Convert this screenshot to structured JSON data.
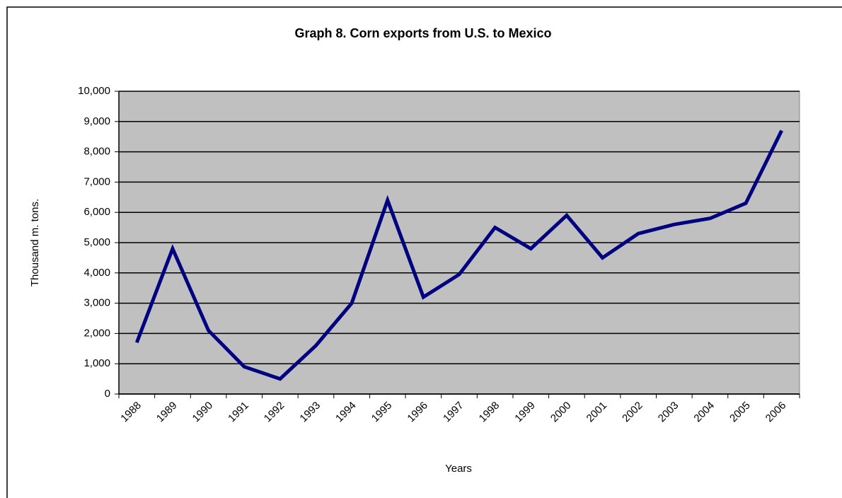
{
  "chart_data": {
    "type": "line",
    "title": "Graph 8. Corn exports from U.S. to Mexico",
    "x_label": "Years",
    "y_label": "Thousand m. tons.",
    "categories": [
      "1988",
      "1989",
      "1990",
      "1991",
      "1992",
      "1993",
      "1994",
      "1995",
      "1996",
      "1997",
      "1998",
      "1999",
      "2000",
      "2001",
      "2002",
      "2003",
      "2004",
      "2005",
      "2006"
    ],
    "series": [
      {
        "name": "Corn exports",
        "color": "#000080",
        "values": [
          1700,
          4800,
          2100,
          900,
          500,
          1600,
          3000,
          6400,
          3200,
          3950,
          5500,
          4800,
          5900,
          4500,
          5300,
          5600,
          5800,
          6300,
          8700
        ]
      }
    ],
    "ylim": [
      0,
      10000
    ],
    "yticks": [
      0,
      {
        "value": 1000,
        "label": "1,000"
      },
      {
        "value": 2000,
        "label": "2,000"
      },
      {
        "value": 3000,
        "label": "3,000"
      },
      {
        "value": 4000,
        "label": "4,000"
      },
      {
        "value": 5000,
        "label": "5,000"
      },
      {
        "value": 6000,
        "label": "6,000"
      },
      {
        "value": 7000,
        "label": "7,000"
      },
      {
        "value": 8000,
        "label": "8,000"
      },
      {
        "value": 9000,
        "label": "9,000"
      },
      {
        "value": 10000,
        "label": "10,000"
      }
    ],
    "grid": true,
    "plot_background": "#c0c0c0"
  }
}
